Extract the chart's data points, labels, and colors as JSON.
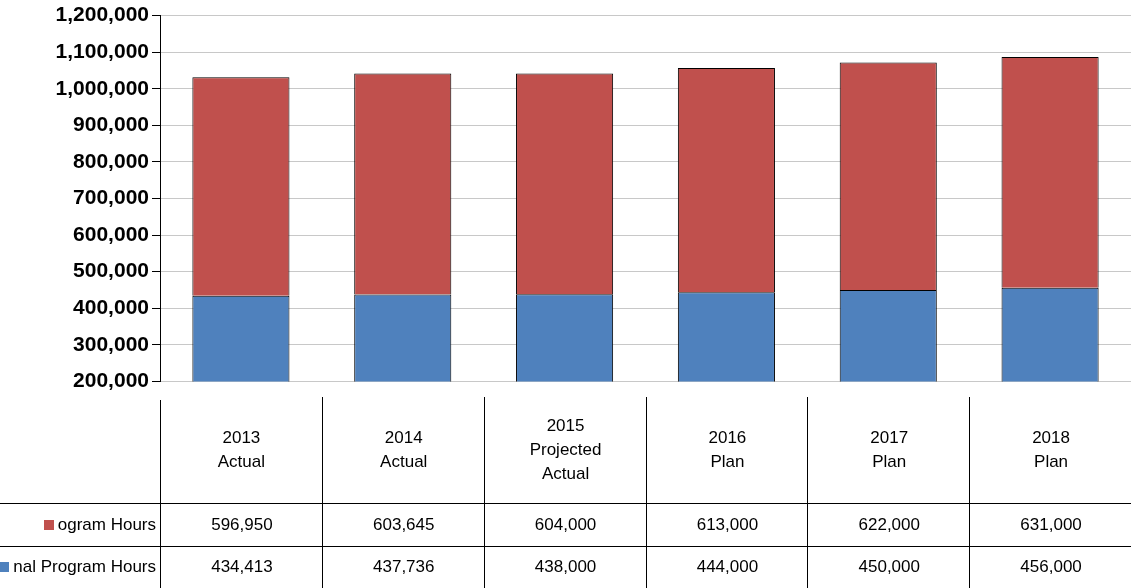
{
  "chart_data": {
    "type": "bar",
    "stacked": true,
    "categories": [
      "2013 Actual",
      "2014 Actual",
      "2015 Projected Actual",
      "2016 Plan",
      "2017 Plan",
      "2018 Plan"
    ],
    "series": [
      {
        "name": "nal Program Hours",
        "color": "#4f81bd",
        "values": [
          434413,
          437736,
          438000,
          444000,
          450000,
          456000
        ],
        "value_labels": [
          "434,413",
          "437,736",
          "438,000",
          "444,000",
          "450,000",
          "456,000"
        ]
      },
      {
        "name": "ogram Hours",
        "color": "#c0504d",
        "values": [
          596950,
          603645,
          604000,
          613000,
          622000,
          631000
        ],
        "value_labels": [
          "596,950",
          "603,645",
          "604,000",
          "613,000",
          "622,000",
          "631,000"
        ]
      }
    ],
    "ylim": [
      200000,
      1200000
    ],
    "yticks": [
      {
        "value": 200000,
        "label": "200,000"
      },
      {
        "value": 300000,
        "label": "300,000"
      },
      {
        "value": 400000,
        "label": "400,000"
      },
      {
        "value": 500000,
        "label": "500,000"
      },
      {
        "value": 600000,
        "label": "600,000"
      },
      {
        "value": 700000,
        "label": "700,000"
      },
      {
        "value": 800000,
        "label": "800,000"
      },
      {
        "value": 900000,
        "label": "900,000"
      },
      {
        "value": 1000000,
        "label": "1,000,000"
      },
      {
        "value": 1100000,
        "label": "1,100,000"
      },
      {
        "value": 1200000,
        "label": "1,200,000"
      }
    ],
    "grid": "y",
    "legend": "bottom left"
  }
}
